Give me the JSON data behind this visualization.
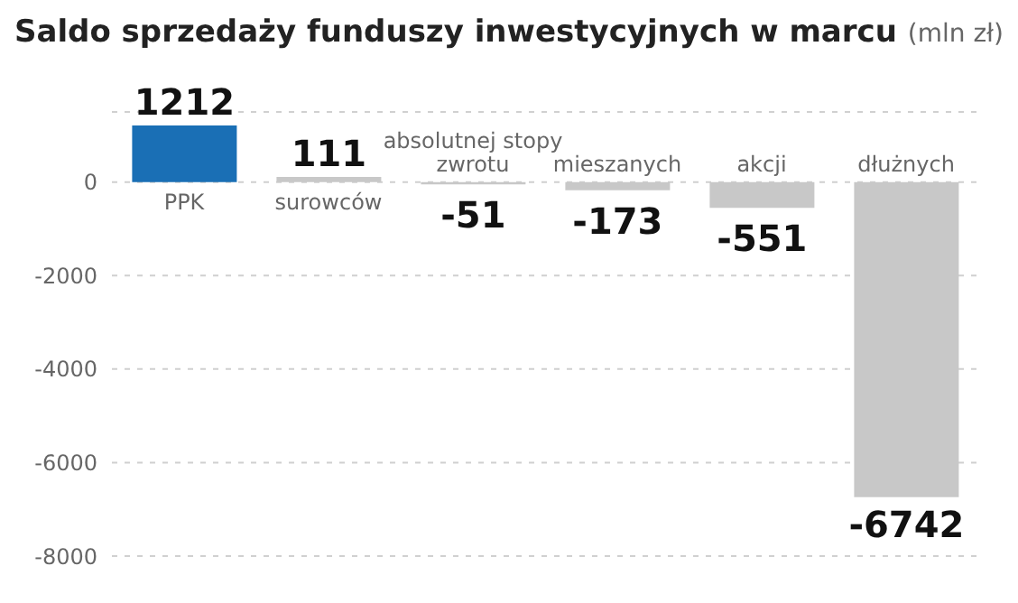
{
  "chart_data": {
    "type": "bar",
    "title": "Saldo sprzedaży funduszy inwestycyjnych w marcu",
    "subtitle": "(mln zł)",
    "categories": [
      "PPK",
      "surowców",
      "absolutnej stopy zwrotu",
      "mieszanych",
      "akcji",
      "dłużnych"
    ],
    "values": [
      1212,
      111,
      -51,
      -173,
      -551,
      -6742
    ],
    "colors": [
      "#1a6fb5",
      "#c8c8c8",
      "#c8c8c8",
      "#c8c8c8",
      "#c8c8c8",
      "#c8c8c8"
    ],
    "ylim": [
      -8000,
      1500
    ],
    "yticks": [
      -8000,
      -6000,
      -4000,
      -2000,
      0
    ],
    "grid": "y",
    "data_labels": true
  }
}
